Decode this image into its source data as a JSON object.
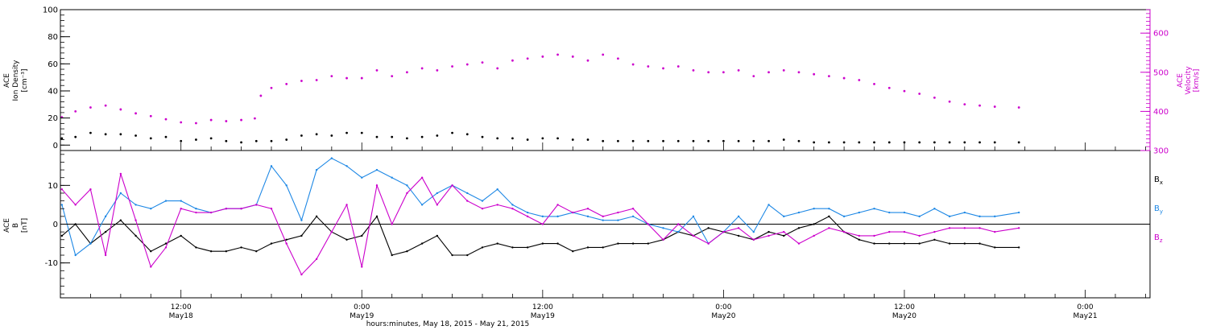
{
  "chart_data": [
    {
      "type": "scatter",
      "title": "",
      "xlabel": "hours:minutes, May 18, 2015 - May 21, 2015",
      "x_ticks": [
        {
          "t": 12,
          "time": "12:00",
          "date": "May18"
        },
        {
          "t": 24,
          "time": "0:00",
          "date": "May19"
        },
        {
          "t": 36,
          "time": "12:00",
          "date": "May19"
        },
        {
          "t": 48,
          "time": "0:00",
          "date": "May20"
        },
        {
          "t": 60,
          "time": "12:00",
          "date": "May20"
        },
        {
          "t": 72,
          "time": "0:00",
          "date": "May21"
        }
      ],
      "xlim": [
        4,
        76.3
      ],
      "ylabel_left": [
        "ACE",
        "Ion Density",
        "[cm⁻³]"
      ],
      "ylim_left": [
        -4,
        100
      ],
      "yticks_left": [
        0,
        20,
        40,
        60,
        80,
        100
      ],
      "ylabel_right": [
        "ACE",
        "Velocity",
        "[km/s]"
      ],
      "ylim_right": [
        300,
        660
      ],
      "yticks_right": [
        300,
        400,
        500,
        600
      ],
      "series": [
        {
          "axis": "left",
          "color": "#000000",
          "x": [
            4.1,
            5,
            6,
            7,
            8,
            9,
            10,
            11,
            12,
            13,
            14,
            15,
            16,
            17,
            18,
            19,
            20,
            21,
            22,
            23,
            24,
            25,
            26,
            27,
            28,
            29,
            30,
            31,
            32,
            33,
            34,
            35,
            36,
            37,
            38,
            39,
            40,
            41,
            42,
            43,
            44,
            45,
            46,
            47,
            48,
            49,
            50,
            51,
            52,
            53,
            54,
            55,
            56,
            57,
            58,
            59,
            60,
            61,
            62,
            63,
            64,
            65,
            66,
            67.6
          ],
          "y": [
            5,
            6,
            9,
            8,
            8,
            7,
            5,
            6,
            3,
            4,
            5,
            3,
            2,
            3,
            3,
            4,
            7,
            8,
            7,
            9,
            9,
            6,
            6,
            5,
            6,
            7,
            9,
            8,
            6,
            5,
            5,
            4,
            5,
            5,
            4,
            4,
            3,
            3,
            3,
            3,
            3,
            3,
            3,
            3,
            3,
            3,
            3,
            3,
            4,
            3,
            2,
            2,
            2,
            2,
            2,
            2,
            2,
            2,
            2,
            2,
            2,
            2,
            2,
            2
          ]
        },
        {
          "axis": "right",
          "color": "#cc00cc",
          "x": [
            4.1,
            5,
            6,
            7,
            8,
            9,
            10,
            11,
            12,
            13,
            14,
            15,
            16,
            16.9,
            17.3,
            18,
            19,
            20,
            21,
            22,
            23,
            24,
            25,
            26,
            27,
            28,
            29,
            30,
            31,
            32,
            33,
            34,
            35,
            36,
            37,
            38,
            39,
            40,
            41,
            42,
            43,
            44,
            45,
            46,
            47,
            48,
            49,
            50,
            51,
            52,
            53,
            54,
            55,
            56,
            57,
            58,
            59,
            60,
            61,
            62,
            63,
            64,
            65,
            66,
            67.6
          ],
          "y": [
            385,
            400,
            410,
            415,
            405,
            395,
            388,
            380,
            372,
            370,
            378,
            375,
            378,
            382,
            440,
            460,
            470,
            478,
            480,
            490,
            485,
            485,
            505,
            490,
            500,
            510,
            505,
            515,
            520,
            525,
            510,
            530,
            535,
            540,
            545,
            540,
            530,
            545,
            535,
            520,
            515,
            510,
            515,
            505,
            500,
            500,
            505,
            490,
            500,
            505,
            500,
            495,
            490,
            485,
            480,
            470,
            460,
            452,
            445,
            435,
            425,
            418,
            415,
            412,
            410
          ]
        }
      ]
    },
    {
      "type": "line",
      "title": "",
      "ylabel": [
        "ACE",
        "B",
        "[nT]"
      ],
      "ylim": [
        -19,
        19
      ],
      "yticks": [
        -10,
        0,
        10
      ],
      "zero_line": true,
      "xlim": [
        4,
        76.3
      ],
      "legend": {
        "position": "right",
        "entries": [
          {
            "name": "B",
            "sub": "x"
          },
          {
            "name": "B",
            "sub": "y"
          },
          {
            "name": "B",
            "sub": "z"
          }
        ]
      },
      "series": [
        {
          "name": "Bx",
          "color": "#000000",
          "x": [
            4.1,
            5,
            6,
            7,
            8,
            9,
            10,
            11,
            12,
            13,
            14,
            15,
            16,
            17,
            18,
            19,
            20,
            21,
            22,
            23,
            24,
            25,
            26,
            27,
            28,
            29,
            30,
            31,
            32,
            33,
            34,
            35,
            36,
            37,
            38,
            39,
            40,
            41,
            42,
            43,
            44,
            45,
            46,
            47,
            48,
            49,
            50,
            51,
            52,
            53,
            54,
            55,
            56,
            57,
            58,
            59,
            60,
            61,
            62,
            63,
            64,
            65,
            66,
            67.6
          ],
          "y": [
            -3,
            0,
            -5,
            -2,
            1,
            -3,
            -7,
            -5,
            -3,
            -6,
            -7,
            -7,
            -6,
            -7,
            -5,
            -4,
            -3,
            2,
            -2,
            -4,
            -3,
            2,
            -8,
            -7,
            -5,
            -3,
            -8,
            -8,
            -6,
            -5,
            -6,
            -6,
            -5,
            -5,
            -7,
            -6,
            -6,
            -5,
            -5,
            -5,
            -4,
            -2,
            -3,
            -1,
            -2,
            -3,
            -4,
            -2,
            -3,
            -1,
            0,
            2,
            -2,
            -4,
            -5,
            -5,
            -5,
            -5,
            -4,
            -5,
            -5,
            -5,
            -6,
            -6
          ]
        },
        {
          "name": "By",
          "color": "#1e88e5",
          "x": [
            4.1,
            5,
            6,
            7,
            8,
            9,
            10,
            11,
            12,
            13,
            14,
            15,
            16,
            17,
            18,
            19,
            20,
            21,
            22,
            23,
            24,
            25,
            26,
            27,
            28,
            29,
            30,
            31,
            32,
            33,
            34,
            35,
            36,
            37,
            38,
            39,
            40,
            41,
            42,
            43,
            44,
            45,
            46,
            47,
            48,
            49,
            50,
            51,
            52,
            53,
            54,
            55,
            56,
            57,
            58,
            59,
            60,
            61,
            62,
            63,
            64,
            65,
            66,
            67.6
          ],
          "y": [
            5,
            -8,
            -5,
            2,
            8,
            5,
            4,
            6,
            6,
            4,
            3,
            4,
            4,
            5,
            15,
            10,
            1,
            14,
            17,
            15,
            12,
            14,
            12,
            10,
            5,
            8,
            10,
            8,
            6,
            9,
            5,
            3,
            2,
            2,
            3,
            2,
            1,
            1,
            2,
            0,
            -1,
            -2,
            2,
            -5,
            -2,
            2,
            -2,
            5,
            2,
            3,
            4,
            4,
            2,
            3,
            4,
            3,
            3,
            2,
            4,
            2,
            3,
            2,
            2,
            3
          ]
        },
        {
          "name": "Bz",
          "color": "#cc00cc",
          "x": [
            4.1,
            5,
            6,
            7,
            8,
            9,
            10,
            11,
            12,
            13,
            14,
            15,
            16,
            17,
            18,
            19,
            20,
            21,
            22,
            23,
            24,
            25,
            26,
            27,
            28,
            29,
            30,
            31,
            32,
            33,
            34,
            35,
            36,
            37,
            38,
            39,
            40,
            41,
            42,
            43,
            44,
            45,
            46,
            47,
            48,
            49,
            50,
            51,
            52,
            53,
            54,
            55,
            56,
            57,
            58,
            59,
            60,
            61,
            62,
            63,
            64,
            65,
            66,
            67.6
          ],
          "y": [
            9,
            5,
            9,
            -8,
            13,
            1,
            -11,
            -6,
            4,
            3,
            3,
            4,
            4,
            5,
            4,
            -5,
            -13,
            -9,
            -2,
            5,
            -11,
            10,
            0,
            8,
            12,
            5,
            10,
            6,
            4,
            5,
            4,
            2,
            0,
            5,
            3,
            4,
            2,
            3,
            4,
            0,
            -4,
            0,
            -3,
            -5,
            -2,
            -1,
            -4,
            -3,
            -2,
            -5,
            -3,
            -1,
            -2,
            -3,
            -3,
            -2,
            -2,
            -3,
            -2,
            -1,
            -1,
            -1,
            -2,
            -1
          ]
        }
      ]
    }
  ]
}
